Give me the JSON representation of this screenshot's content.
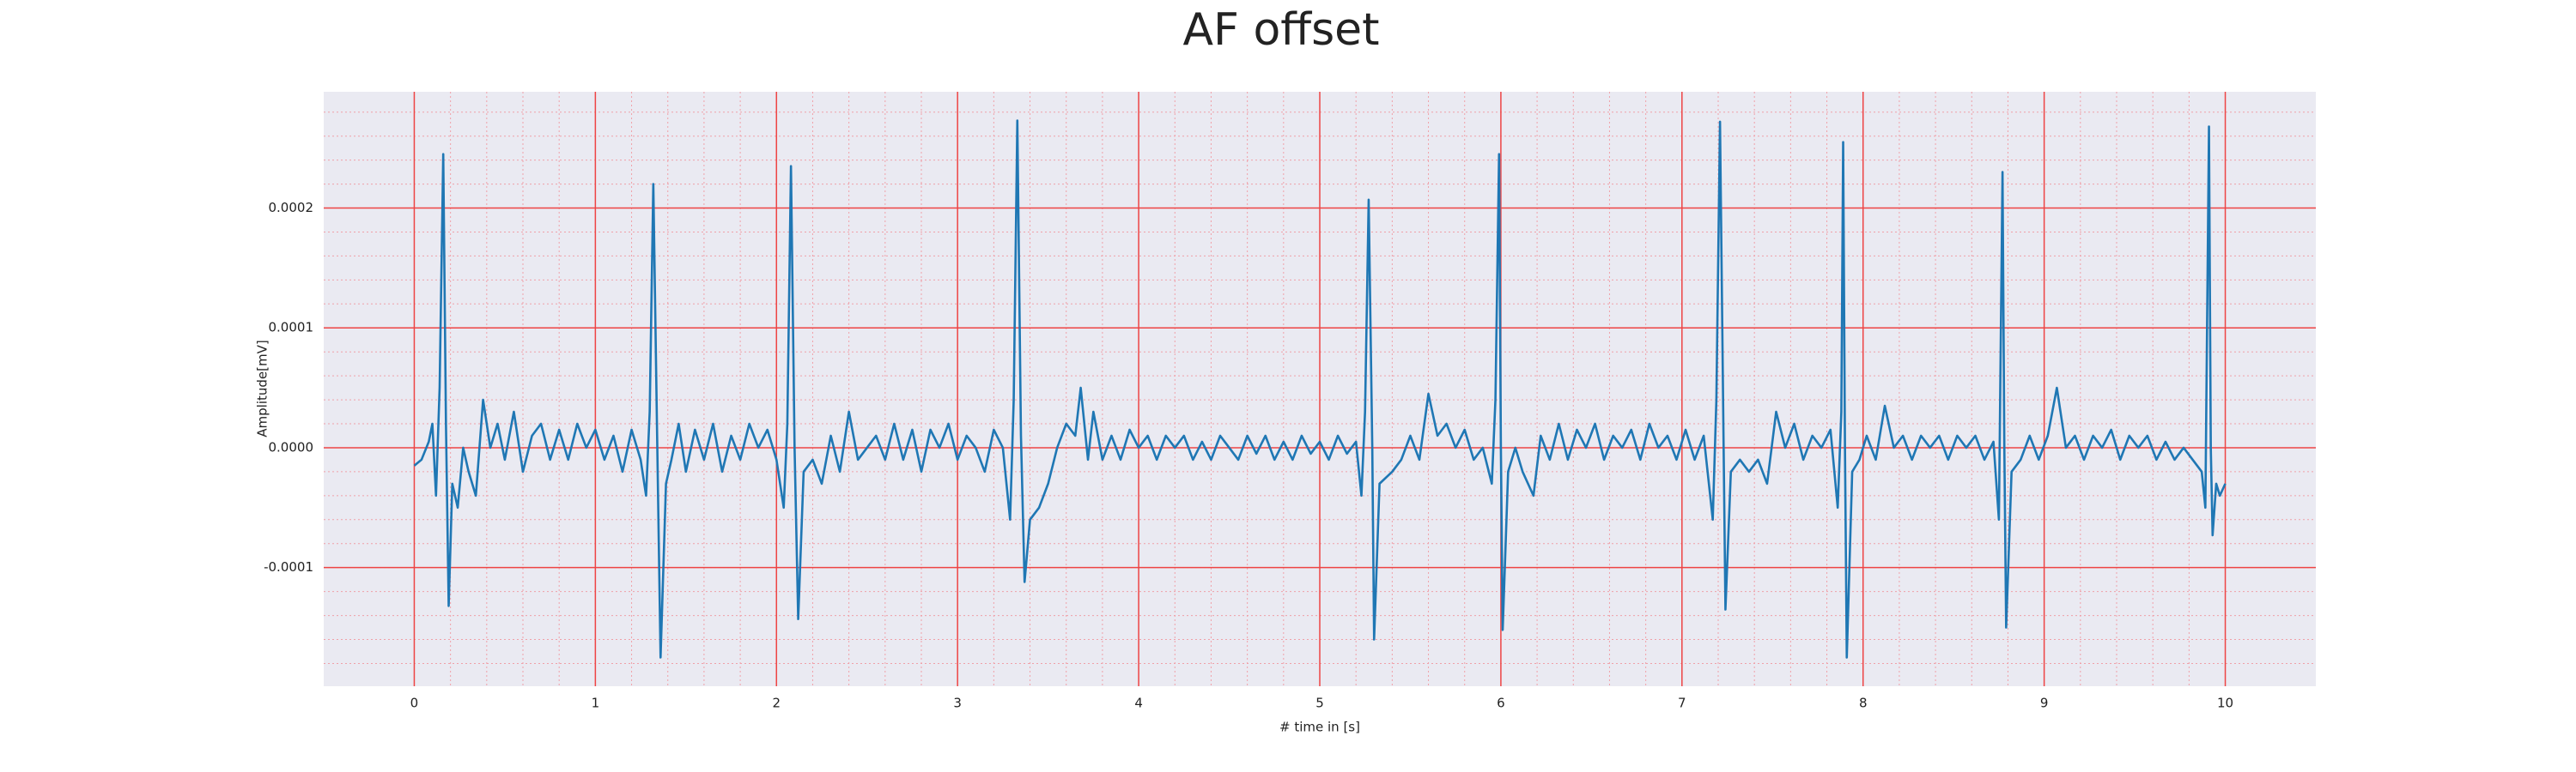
{
  "chart_data": {
    "type": "line",
    "title": "AF offset",
    "xlabel": "# time in [s]",
    "ylabel": "Amplitude[mV]",
    "xlim": [
      -0.5,
      10.5
    ],
    "ylim": [
      -0.000199,
      0.000297
    ],
    "xticks": [
      0,
      1,
      2,
      3,
      4,
      5,
      6,
      7,
      8,
      9,
      10
    ],
    "yticks": [
      {
        "value": -0.0001,
        "label": "-0.0001"
      },
      {
        "value": 0,
        "label": "0.0000"
      },
      {
        "value": 0.0001,
        "label": "0.0001"
      },
      {
        "value": 0.0002,
        "label": "0.0002"
      }
    ],
    "grid": true,
    "minor_grid": true,
    "series": [
      {
        "color": "#1f77b4",
        "x": [
          0,
          0.04,
          0.08,
          0.1,
          0.12,
          0.14,
          0.16,
          0.175,
          0.19,
          0.21,
          0.24,
          0.27,
          0.3,
          0.34,
          0.38,
          0.42,
          0.46,
          0.5,
          0.55,
          0.6,
          0.65,
          0.7,
          0.75,
          0.8,
          0.85,
          0.9,
          0.95,
          1.0,
          1.05,
          1.1,
          1.15,
          1.2,
          1.25,
          1.28,
          1.3,
          1.32,
          1.34,
          1.36,
          1.39,
          1.42,
          1.46,
          1.5,
          1.55,
          1.6,
          1.65,
          1.7,
          1.75,
          1.8,
          1.85,
          1.9,
          1.95,
          2.0,
          2.04,
          2.06,
          2.08,
          2.1,
          2.12,
          2.15,
          2.2,
          2.25,
          2.3,
          2.35,
          2.4,
          2.45,
          2.5,
          2.55,
          2.6,
          2.65,
          2.7,
          2.75,
          2.8,
          2.85,
          2.9,
          2.95,
          3.0,
          3.05,
          3.1,
          3.15,
          3.2,
          3.25,
          3.29,
          3.31,
          3.33,
          3.35,
          3.37,
          3.4,
          3.45,
          3.5,
          3.55,
          3.6,
          3.65,
          3.68,
          3.72,
          3.75,
          3.8,
          3.85,
          3.9,
          3.95,
          4.0,
          4.05,
          4.1,
          4.15,
          4.2,
          4.25,
          4.3,
          4.35,
          4.4,
          4.45,
          4.5,
          4.55,
          4.6,
          4.65,
          4.7,
          4.75,
          4.8,
          4.85,
          4.9,
          4.95,
          5.0,
          5.05,
          5.1,
          5.15,
          5.2,
          5.23,
          5.25,
          5.27,
          5.29,
          5.3,
          5.33,
          5.4,
          5.45,
          5.5,
          5.55,
          5.6,
          5.65,
          5.7,
          5.75,
          5.8,
          5.85,
          5.9,
          5.95,
          5.97,
          5.99,
          6.0,
          6.01,
          6.04,
          6.08,
          6.12,
          6.18,
          6.22,
          6.27,
          6.32,
          6.37,
          6.42,
          6.47,
          6.52,
          6.57,
          6.62,
          6.67,
          6.72,
          6.77,
          6.82,
          6.87,
          6.92,
          6.97,
          7.02,
          7.07,
          7.12,
          7.17,
          7.19,
          7.21,
          7.23,
          7.24,
          7.27,
          7.32,
          7.37,
          7.42,
          7.47,
          7.52,
          7.57,
          7.62,
          7.67,
          7.72,
          7.77,
          7.82,
          7.86,
          7.88,
          7.89,
          7.9,
          7.91,
          7.94,
          7.98,
          8.02,
          8.07,
          8.12,
          8.17,
          8.22,
          8.27,
          8.32,
          8.37,
          8.42,
          8.47,
          8.52,
          8.57,
          8.62,
          8.67,
          8.72,
          8.75,
          8.77,
          8.78,
          8.79,
          8.82,
          8.87,
          8.92,
          8.97,
          9.02,
          9.07,
          9.12,
          9.17,
          9.22,
          9.27,
          9.32,
          9.37,
          9.42,
          9.47,
          9.52,
          9.57,
          9.62,
          9.67,
          9.72,
          9.77,
          9.82,
          9.87,
          9.89,
          9.91,
          9.92,
          9.93,
          9.95,
          9.97,
          10.0
        ],
        "values": [
          -1.5e-05,
          -1e-05,
          5e-06,
          2e-05,
          -4e-05,
          5e-05,
          0.000245,
          2e-05,
          -0.000132,
          -3e-05,
          -5e-05,
          0,
          -2e-05,
          -4e-05,
          4e-05,
          0,
          2e-05,
          -1e-05,
          3e-05,
          -2e-05,
          1e-05,
          2e-05,
          -1e-05,
          1.5e-05,
          -1e-05,
          2e-05,
          0,
          1.5e-05,
          -1e-05,
          1e-05,
          -2e-05,
          1.5e-05,
          -1e-05,
          -4e-05,
          3e-05,
          0.00022,
          2e-05,
          -0.000175,
          -3e-05,
          -1e-05,
          2e-05,
          -2e-05,
          1.5e-05,
          -1e-05,
          2e-05,
          -2e-05,
          1e-05,
          -1e-05,
          2e-05,
          0,
          1.5e-05,
          -1e-05,
          -5e-05,
          2e-05,
          0.000235,
          0,
          -0.000143,
          -2e-05,
          -1e-05,
          -3e-05,
          1e-05,
          -2e-05,
          3e-05,
          -1e-05,
          0,
          1e-05,
          -1e-05,
          2e-05,
          -1e-05,
          1.5e-05,
          -2e-05,
          1.5e-05,
          0,
          2e-05,
          -1e-05,
          1e-05,
          0,
          -2e-05,
          1.5e-05,
          0,
          -6e-05,
          4e-05,
          0.000273,
          1e-05,
          -0.000112,
          -6e-05,
          -5e-05,
          -3e-05,
          0,
          2e-05,
          1e-05,
          5e-05,
          -1e-05,
          3e-05,
          -1e-05,
          1e-05,
          -1e-05,
          1.5e-05,
          0,
          1e-05,
          -1e-05,
          1e-05,
          0,
          1e-05,
          -1e-05,
          5e-06,
          -1e-05,
          1e-05,
          0,
          -1e-05,
          1e-05,
          -5e-06,
          1e-05,
          -1e-05,
          5e-06,
          -1e-05,
          1e-05,
          -5e-06,
          5e-06,
          -1e-05,
          1e-05,
          -5e-06,
          5e-06,
          -4e-05,
          3e-05,
          0.000207,
          0,
          -0.00016,
          -3e-05,
          -2e-05,
          -1e-05,
          1e-05,
          -1e-05,
          4.5e-05,
          1e-05,
          2e-05,
          0,
          1.5e-05,
          -1e-05,
          0,
          -3e-05,
          4e-05,
          0.000245,
          0,
          -0.000152,
          -2e-05,
          0,
          -2e-05,
          -4e-05,
          1e-05,
          -1e-05,
          2e-05,
          -1e-05,
          1.5e-05,
          0,
          2e-05,
          -1e-05,
          1e-05,
          0,
          1.5e-05,
          -1e-05,
          2e-05,
          0,
          1e-05,
          -1e-05,
          1.5e-05,
          -1e-05,
          1e-05,
          -6e-05,
          4e-05,
          0.000272,
          0,
          -0.000135,
          -2e-05,
          -1e-05,
          -2e-05,
          -1e-05,
          -3e-05,
          3e-05,
          0,
          2e-05,
          -1e-05,
          1e-05,
          0,
          1.5e-05,
          -5e-05,
          3e-05,
          0.000255,
          0,
          -0.000175,
          -2e-05,
          -1e-05,
          1e-05,
          -1e-05,
          3.5e-05,
          0,
          1e-05,
          -1e-05,
          1e-05,
          0,
          1e-05,
          -1e-05,
          1e-05,
          0,
          1e-05,
          -1e-05,
          5e-06,
          -6e-05,
          0.00023,
          0,
          -0.00015,
          -2e-05,
          -1e-05,
          1e-05,
          -1e-05,
          1e-05,
          5e-05,
          0,
          1e-05,
          -1e-05,
          1e-05,
          0,
          1.5e-05,
          -1e-05,
          1e-05,
          0,
          1e-05,
          -1e-05,
          5e-06,
          -1e-05,
          0,
          -1e-05,
          -2e-05,
          -5e-05,
          0.000268,
          0,
          -7.3e-05,
          -3e-05,
          -4e-05,
          -3e-05
        ]
      }
    ]
  }
}
